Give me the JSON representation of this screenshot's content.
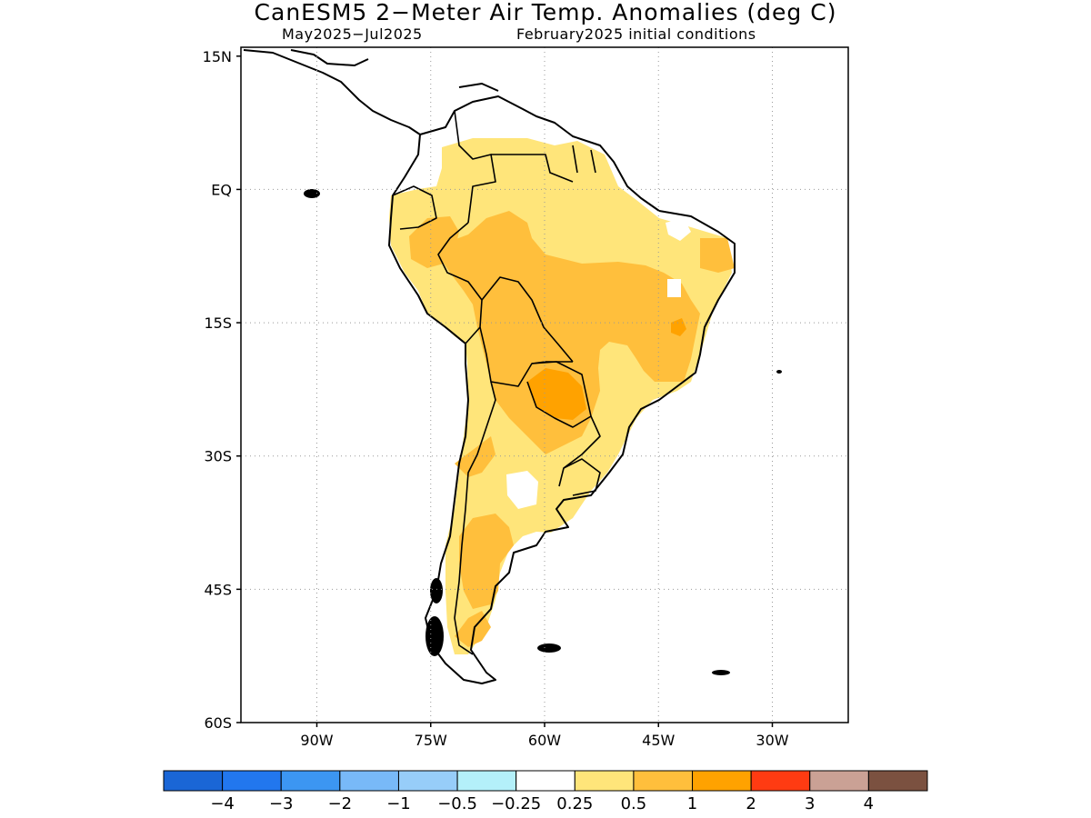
{
  "header": {
    "title": "CanESM5 2−Meter Air Temp. Anomalies (deg C)",
    "period": "May2025−Jul2025",
    "init": "February2025 initial conditions"
  },
  "map": {
    "lat_labels": [
      "15N",
      "EQ",
      "15S",
      "30S",
      "45S",
      "60S"
    ],
    "lat_values": [
      15,
      0,
      -15,
      -30,
      -45,
      -60
    ],
    "lon_labels": [
      "90W",
      "75W",
      "60W",
      "45W",
      "30W"
    ],
    "lon_values": [
      -90,
      -75,
      -60,
      -45,
      -30
    ],
    "lon_range": [
      -100,
      -20
    ],
    "lat_range": [
      -60,
      16
    ],
    "grid": "dotted"
  },
  "legend": {
    "labels": [
      "−4",
      "−3",
      "−2",
      "−1",
      "−0.5",
      "−0.25",
      "0.25",
      "0.5",
      "1",
      "2",
      "3",
      "4"
    ],
    "colors": [
      "#1a66d6",
      "#2277ee",
      "#3c96f2",
      "#78b9f8",
      "#97cdf9",
      "#b4f0fa",
      "#ffffff",
      "#ffe57a",
      "#ffbf3c",
      "#ffa200",
      "#ff3b12",
      "#caa195",
      "#7b5140"
    ]
  }
}
